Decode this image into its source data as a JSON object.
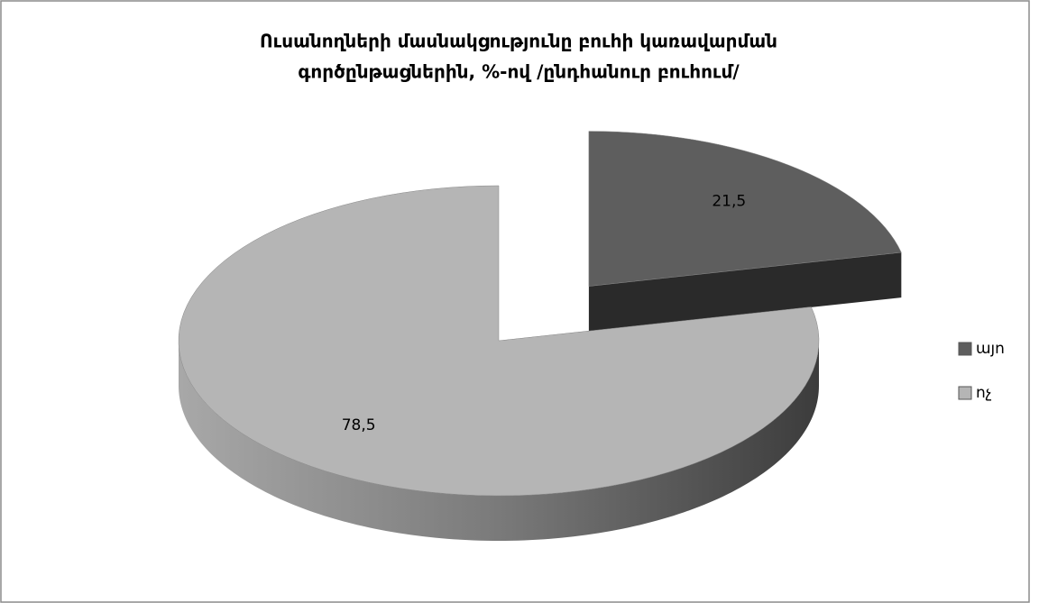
{
  "chart_data": {
    "type": "pie3d",
    "title": [
      "Ուսանողների մասնակցությունը բուհի կառավարման",
      "գործընթացներին, %-ով /ընդհանուր բուհում/"
    ],
    "categories": [
      "այո",
      "ոչ"
    ],
    "values": [
      21.5,
      78.5
    ],
    "value_labels": [
      "21,5",
      "78,5"
    ],
    "colors": [
      "#5e5e5e",
      "#b5b5b5"
    ],
    "exploded": [
      true,
      false
    ],
    "legend": "right"
  }
}
